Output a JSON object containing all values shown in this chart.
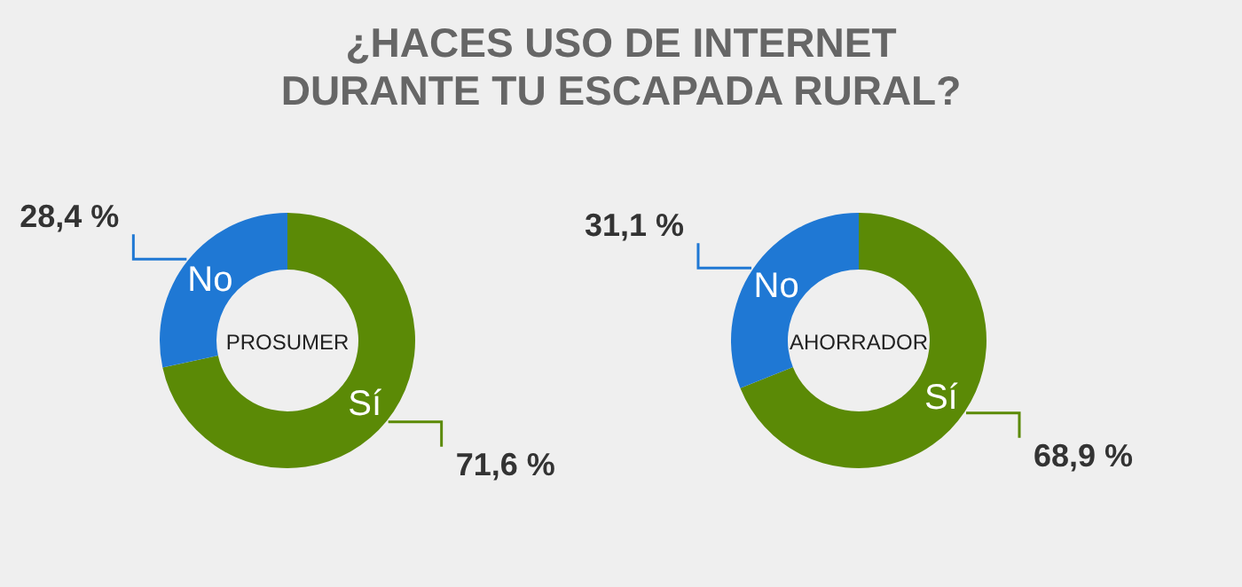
{
  "chart_data": [
    {
      "type": "donut",
      "title": "¿HACES USO DE INTERNET\nDURANTE TU ESCAPADA RURAL?",
      "categories": [
        "Sí",
        "No"
      ],
      "values": [
        71.6,
        28.4
      ],
      "colors": [
        "#5b8a06",
        "#1f78d4"
      ],
      "value_labels": [
        "71,6 %",
        "28,4 %"
      ],
      "annotations": [
        "PROSUMER"
      ]
    },
    {
      "type": "donut",
      "categories": [
        "Sí",
        "No"
      ],
      "values": [
        68.9,
        31.1
      ],
      "colors": [
        "#5b8a06",
        "#1f78d4"
      ],
      "value_labels": [
        "68,9 %",
        "31,1 %"
      ],
      "annotations": [
        "AHORRADOR"
      ]
    }
  ]
}
